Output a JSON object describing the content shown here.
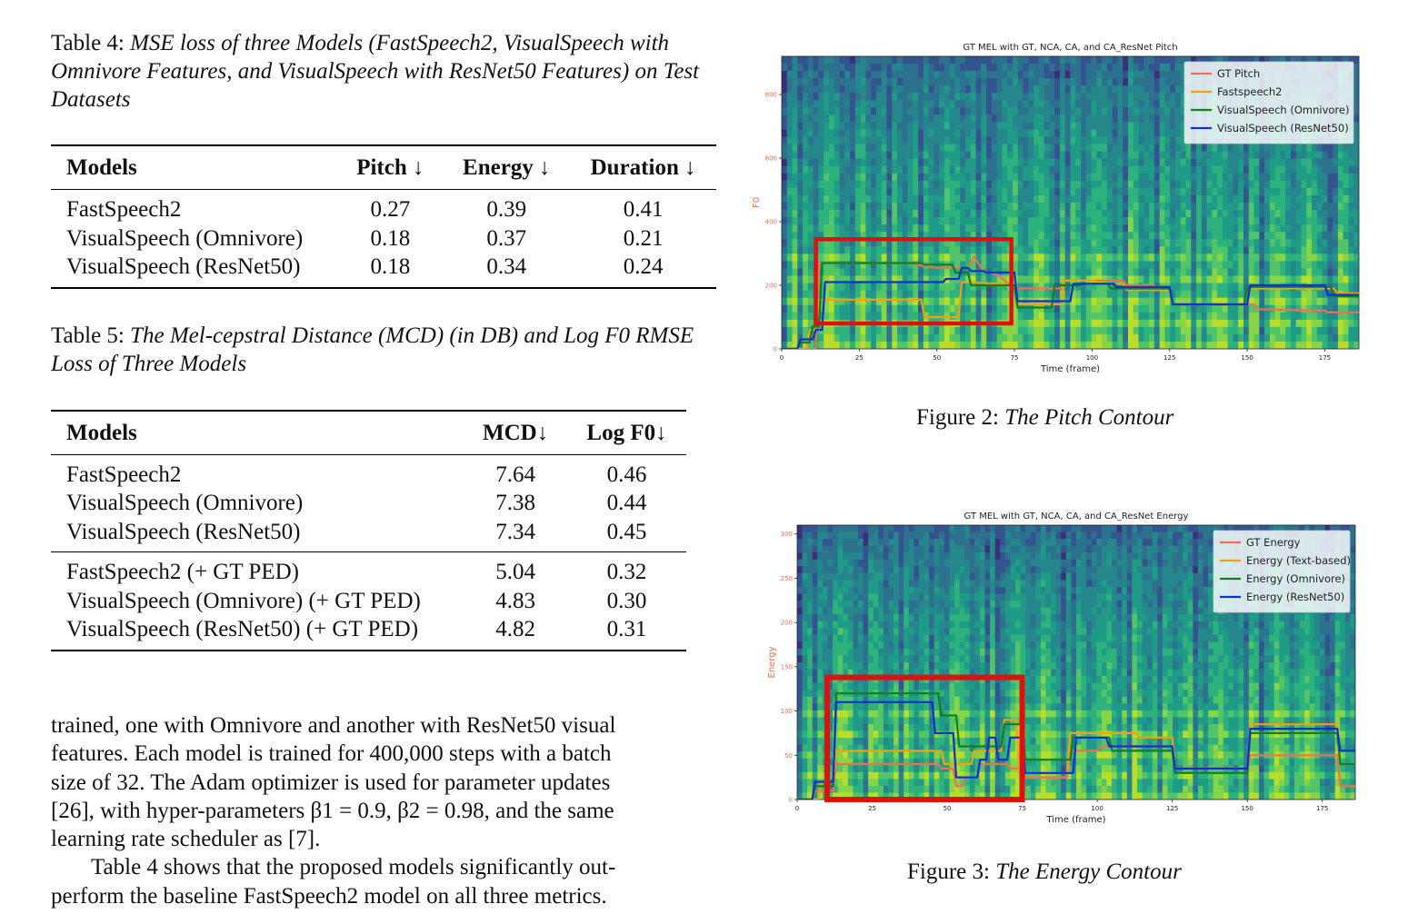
{
  "table4": {
    "label": "Table 4:",
    "caption": "MSE loss of three Models (FastSpeech2, VisualSpeech with Omnivore Features, and VisualSpeech with ResNet50 Features) on Test Datasets",
    "headers": [
      "Models",
      "Pitch ↓",
      "Energy ↓",
      "Duration ↓"
    ],
    "rows": [
      [
        "FastSpeech2",
        "0.27",
        "0.39",
        "0.41"
      ],
      [
        "VisualSpeech (Omnivore)",
        "0.18",
        "0.37",
        "0.21"
      ],
      [
        "VisualSpeech (ResNet50)",
        "0.18",
        "0.34",
        "0.24"
      ]
    ]
  },
  "table5": {
    "label": "Table 5:",
    "caption": "The Mel-cepstral Distance (MCD) (in DB) and Log F0 RMSE Loss of Three Models",
    "headers": [
      "Models",
      "MCD↓",
      "Log F0↓"
    ],
    "rows": [
      [
        "FastSpeech2",
        "7.64",
        "0.46"
      ],
      [
        "VisualSpeech (Omnivore)",
        "7.38",
        "0.44"
      ],
      [
        "VisualSpeech (ResNet50)",
        "7.34",
        "0.45"
      ],
      [
        "FastSpeech2 (+ GT PED)",
        "5.04",
        "0.32"
      ],
      [
        "VisualSpeech (Omnivore) (+ GT PED)",
        "4.83",
        "0.30"
      ],
      [
        "VisualSpeech (ResNet50) (+ GT PED)",
        "4.82",
        "0.31"
      ]
    ]
  },
  "body": {
    "lines": [
      "trained, one with Omnivore and another with ResNet50 visual",
      "features. Each model is trained for 400,000 steps with a batch",
      "size of 32. The Adam optimizer is used for parameter updates",
      "[26], with hyper-parameters β1 = 0.9, β2 = 0.98, and the same",
      "learning rate scheduler as [7]."
    ],
    "para2_lines": [
      "Table 4 shows that the proposed models significantly out-",
      "perform the baseline FastSpeech2 model on all three metrics."
    ]
  },
  "figure2": {
    "label": "Figure 2:",
    "caption": "The Pitch Contour",
    "chart_data": {
      "type": "line",
      "title": "GT MEL with GT, NCA, CA, and CA_ResNet Pitch",
      "xlabel": "Time (frame)",
      "ylabel": "F0",
      "xlim": [
        0,
        186
      ],
      "ylim": [
        0,
        920
      ],
      "xticks": [
        0,
        25,
        50,
        75,
        100,
        125,
        150,
        175
      ],
      "yticks": [
        0,
        200,
        400,
        600,
        800
      ],
      "legend_position": "top-right",
      "background": "mel-spectrogram",
      "series": [
        {
          "name": "GT Pitch",
          "color": "#f07050",
          "x": [
            0,
            11,
            12,
            20,
            30,
            40,
            50,
            55,
            60,
            62,
            65,
            70,
            75,
            77,
            90,
            91,
            100,
            101,
            110,
            111,
            120,
            121,
            125,
            126,
            147,
            148,
            152,
            153,
            175,
            176,
            186
          ],
          "y": [
            0,
            0,
            270,
            270,
            270,
            270,
            255,
            255,
            255,
            290,
            245,
            230,
            190,
            190,
            190,
            215,
            215,
            215,
            215,
            200,
            200,
            185,
            185,
            140,
            140,
            140,
            140,
            125,
            120,
            115,
            115
          ]
        },
        {
          "name": "Fastspeech2",
          "color": "#f0a010",
          "x": [
            0,
            8,
            9,
            11,
            12,
            45,
            46,
            53,
            54,
            57,
            58,
            70,
            71,
            75,
            76,
            90,
            91,
            101,
            102,
            110,
            111,
            125,
            126,
            150,
            151,
            178,
            179,
            186
          ],
          "y": [
            0,
            0,
            60,
            60,
            155,
            155,
            100,
            100,
            100,
            100,
            210,
            205,
            205,
            200,
            140,
            140,
            215,
            215,
            205,
            205,
            185,
            185,
            140,
            140,
            190,
            190,
            175,
            175
          ]
        },
        {
          "name": "VisualSpeech (Omnivore)",
          "color": "#108020",
          "x": [
            0,
            5,
            6,
            9,
            10,
            12,
            13,
            45,
            46,
            55,
            56,
            60,
            61,
            75,
            76,
            87,
            88,
            96,
            97,
            105,
            106,
            125,
            126,
            149,
            150,
            177,
            178,
            186
          ],
          "y": [
            0,
            0,
            20,
            20,
            70,
            70,
            270,
            270,
            265,
            265,
            240,
            240,
            200,
            200,
            130,
            130,
            200,
            200,
            205,
            205,
            190,
            190,
            140,
            140,
            195,
            195,
            165,
            165
          ]
        },
        {
          "name": "VisualSpeech (ResNet50)",
          "color": "#1030d0",
          "x": [
            0,
            5,
            6,
            10,
            11,
            13,
            14,
            40,
            41,
            52,
            53,
            57,
            58,
            60,
            61,
            65,
            66,
            75,
            76,
            93,
            94,
            107,
            108,
            125,
            126,
            150,
            151,
            175,
            176,
            186
          ],
          "y": [
            0,
            0,
            30,
            30,
            60,
            60,
            210,
            210,
            210,
            210,
            220,
            220,
            255,
            255,
            245,
            245,
            240,
            240,
            150,
            150,
            205,
            205,
            195,
            195,
            140,
            140,
            200,
            200,
            170,
            170
          ]
        }
      ],
      "annotation": "red highlight box"
    }
  },
  "figure3": {
    "label": "Figure 3:",
    "caption": "The Energy Contour",
    "chart_data": {
      "type": "line",
      "title": "GT MEL with GT, NCA, CA, and CA_ResNet Energy",
      "xlabel": "Time (frame)",
      "ylabel": "Energy",
      "xlim": [
        0,
        186
      ],
      "ylim": [
        0,
        310
      ],
      "xticks": [
        0,
        25,
        50,
        75,
        100,
        125,
        150,
        175
      ],
      "yticks": [
        0,
        50,
        100,
        150,
        200,
        250,
        300
      ],
      "legend_position": "top-right",
      "background": "mel-spectrogram",
      "series": [
        {
          "name": "GT Energy",
          "color": "#f07050",
          "x": [
            0,
            5,
            6,
            12,
            13,
            47,
            48,
            52,
            53,
            55,
            56,
            60,
            61,
            65,
            66,
            70,
            71,
            75,
            76,
            90,
            91,
            100,
            101,
            110,
            111,
            125,
            126,
            150,
            151,
            180,
            181,
            186
          ],
          "y": [
            0,
            0,
            10,
            10,
            40,
            40,
            35,
            35,
            15,
            15,
            25,
            25,
            40,
            40,
            40,
            40,
            35,
            35,
            25,
            25,
            55,
            55,
            60,
            60,
            60,
            60,
            35,
            35,
            50,
            50,
            15,
            15
          ]
        },
        {
          "name": "Energy (Text-based)",
          "color": "#f0a010",
          "x": [
            0,
            7,
            8,
            12,
            13,
            48,
            49,
            58,
            59,
            68,
            69,
            73,
            74,
            90,
            91,
            101,
            102,
            113,
            114,
            125,
            126,
            150,
            151,
            180,
            181,
            186
          ],
          "y": [
            0,
            0,
            20,
            20,
            55,
            55,
            40,
            40,
            55,
            55,
            90,
            90,
            30,
            30,
            75,
            75,
            75,
            75,
            70,
            70,
            35,
            35,
            85,
            85,
            40,
            40
          ]
        },
        {
          "name": "Energy (Omnivore)",
          "color": "#108020",
          "x": [
            0,
            5,
            6,
            12,
            13,
            47,
            48,
            53,
            54,
            60,
            61,
            68,
            69,
            75,
            76,
            91,
            92,
            104,
            105,
            112,
            113,
            125,
            126,
            150,
            151,
            180,
            181,
            186
          ],
          "y": [
            0,
            0,
            15,
            15,
            120,
            120,
            95,
            95,
            60,
            60,
            60,
            60,
            85,
            85,
            45,
            45,
            70,
            70,
            55,
            55,
            55,
            55,
            30,
            30,
            75,
            75,
            40,
            40
          ]
        },
        {
          "name": "Energy (ResNet50)",
          "color": "#1030d0",
          "x": [
            0,
            5,
            6,
            12,
            13,
            45,
            46,
            52,
            53,
            56,
            57,
            60,
            61,
            63,
            64,
            66,
            67,
            70,
            71,
            75,
            76,
            92,
            93,
            103,
            104,
            113,
            114,
            125,
            126,
            150,
            151,
            180,
            181,
            186
          ],
          "y": [
            0,
            0,
            20,
            20,
            110,
            110,
            75,
            75,
            25,
            25,
            25,
            25,
            45,
            45,
            70,
            70,
            45,
            45,
            70,
            70,
            30,
            30,
            70,
            70,
            60,
            60,
            60,
            60,
            35,
            35,
            80,
            80,
            55,
            55
          ]
        }
      ],
      "annotation": "red highlight box"
    }
  }
}
